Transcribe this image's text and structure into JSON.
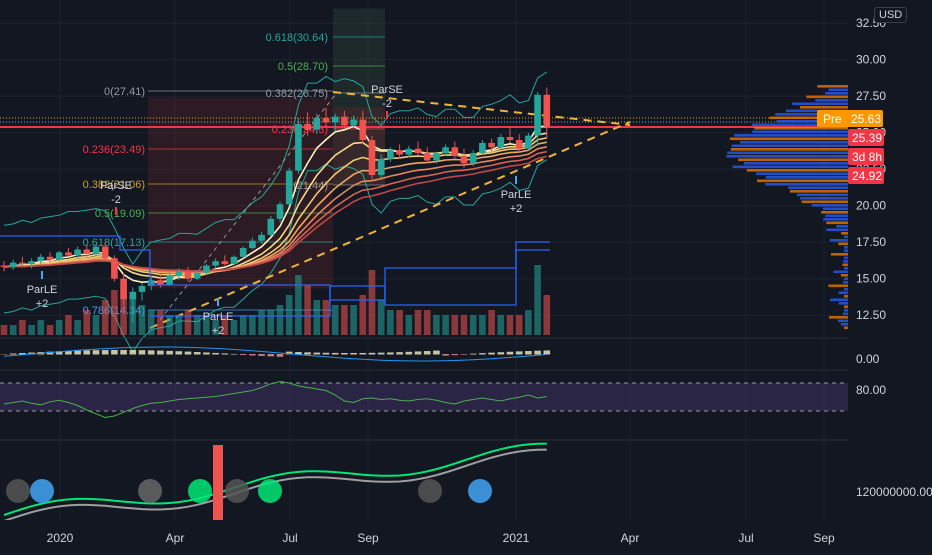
{
  "currency": "USD",
  "colors": {
    "background": "#131722",
    "grid": "#1e2230",
    "axis_text": "#d1d4dc",
    "up": "#26a69a",
    "down": "#ef5350",
    "fib": "#9598a1",
    "trend": "#f0b43c",
    "volume_profile_blue": "#2962ff",
    "volume_profile_orange": "#f57c00",
    "red_line": "#f23645",
    "ema_warm": "#f5c96b",
    "pre_label": "#ff9800"
  },
  "price_labels": [
    {
      "text": "Pre",
      "value": "25.63",
      "color": "#ff9800"
    },
    {
      "text": "",
      "value": "25.39",
      "color": "#f23645"
    },
    {
      "text": "",
      "value": "3d 8h",
      "color": "#f23645"
    },
    {
      "text": "",
      "value": "24.92",
      "color": "#f23645"
    }
  ],
  "x_axis_labels": [
    "2020",
    "Apr",
    "Jul",
    "Sep",
    "2021",
    "Apr",
    "Jul",
    "Sep"
  ],
  "fib_labels": [
    {
      "text": "0(27.41)",
      "color": "#9598a1"
    },
    {
      "text": "0.236(23.49)",
      "color": "#f23645"
    },
    {
      "text": "0.382(21.06)",
      "color": "#c9a227"
    },
    {
      "text": "0.5(19.09)",
      "color": "#4caf50"
    },
    {
      "text": "0.618(17.13)",
      "color": "#26a69a"
    },
    {
      "text": "0.786(14.34)",
      "color": "#42a5f5"
    },
    {
      "text": "0.382(26.75)",
      "color": "#9598a1"
    },
    {
      "text": "0.236(24.3)",
      "color": "#f23645"
    },
    {
      "text": "0(21.44)",
      "color": "#9598a1"
    },
    {
      "text": "0.5(28.70)",
      "color": "#4caf50"
    },
    {
      "text": "0.618(30.64)",
      "color": "#26a69a"
    }
  ],
  "signal_labels": [
    {
      "text": "ParLE",
      "sub": "+2",
      "direction": "up"
    },
    {
      "text": "ParSE",
      "sub": "-2",
      "direction": "down"
    },
    {
      "text": "ParLE",
      "sub": "+2",
      "direction": "up"
    },
    {
      "text": "ParSE",
      "sub": "-2",
      "direction": "down"
    },
    {
      "text": "ParLE",
      "sub": "+2",
      "direction": "up"
    }
  ],
  "chart_data": [
    {
      "type": "candlestick",
      "pane": "price",
      "y_axis_ticks": [
        "12.50",
        "15.00",
        "17.50",
        "20.00",
        "22.50",
        "25.00",
        "27.50",
        "30.00",
        "32.50"
      ],
      "ylim": [
        11,
        33
      ],
      "x_axis_ticks": [
        "2020",
        "Apr",
        "Jul",
        "Sep",
        "2021",
        "Apr",
        "Jul",
        "Sep"
      ],
      "series": [
        {
          "name": "",
          "ohlc": [
            [
              15.9,
              16.2,
              15.5,
              15.8
            ],
            [
              15.8,
              16.3,
              15.6,
              16.1
            ],
            [
              16.1,
              16.5,
              15.9,
              16.0
            ],
            [
              16.0,
              16.4,
              15.7,
              16.2
            ],
            [
              16.2,
              16.7,
              16.0,
              16.5
            ],
            [
              16.5,
              16.8,
              16.1,
              16.3
            ],
            [
              16.3,
              16.9,
              16.2,
              16.8
            ],
            [
              16.8,
              17.1,
              16.5,
              16.6
            ],
            [
              16.6,
              17.2,
              16.4,
              17.0
            ],
            [
              17.0,
              17.3,
              16.5,
              16.7
            ],
            [
              16.7,
              17.4,
              16.6,
              17.2
            ],
            [
              17.2,
              17.5,
              16.2,
              16.4
            ],
            [
              16.4,
              16.6,
              14.8,
              15.0
            ],
            [
              15.0,
              15.4,
              13.2,
              13.6
            ],
            [
              13.6,
              14.4,
              12.0,
              14.1
            ],
            [
              14.1,
              14.7,
              13.5,
              14.5
            ],
            [
              14.5,
              15.2,
              14.2,
              14.9
            ],
            [
              14.9,
              15.3,
              14.4,
              14.6
            ],
            [
              14.6,
              15.4,
              14.5,
              15.2
            ],
            [
              15.2,
              15.7,
              14.9,
              15.5
            ],
            [
              15.5,
              15.8,
              14.8,
              15.0
            ],
            [
              15.0,
              15.6,
              14.9,
              15.4
            ],
            [
              15.4,
              16.0,
              15.3,
              15.9
            ],
            [
              15.9,
              16.4,
              15.7,
              16.2
            ],
            [
              16.2,
              16.6,
              15.9,
              16.0
            ],
            [
              16.0,
              16.6,
              15.9,
              16.5
            ],
            [
              16.5,
              17.2,
              16.4,
              17.1
            ],
            [
              17.1,
              17.8,
              17.0,
              17.6
            ],
            [
              17.6,
              18.2,
              17.4,
              18.0
            ],
            [
              18.0,
              19.3,
              17.9,
              19.1
            ],
            [
              19.1,
              20.3,
              18.9,
              20.1
            ],
            [
              20.1,
              22.6,
              20.0,
              22.4
            ],
            [
              22.4,
              26.0,
              22.2,
              25.6
            ],
            [
              25.6,
              26.4,
              24.8,
              25.2
            ],
            [
              25.2,
              26.3,
              24.9,
              26.0
            ],
            [
              26.0,
              26.7,
              25.4,
              25.7
            ],
            [
              25.7,
              26.3,
              25.1,
              26.1
            ],
            [
              26.1,
              26.5,
              25.3,
              25.5
            ],
            [
              25.5,
              26.2,
              25.3,
              25.9
            ],
            [
              25.9,
              26.5,
              24.2,
              24.5
            ],
            [
              24.5,
              24.8,
              21.8,
              22.1
            ],
            [
              22.1,
              23.5,
              21.9,
              23.2
            ],
            [
              23.2,
              24.0,
              23.0,
              23.8
            ],
            [
              23.8,
              24.2,
              23.2,
              23.5
            ],
            [
              23.5,
              24.1,
              23.3,
              23.9
            ],
            [
              23.9,
              24.4,
              23.4,
              23.6
            ],
            [
              23.6,
              24.0,
              22.9,
              23.1
            ],
            [
              23.1,
              23.7,
              22.9,
              23.6
            ],
            [
              23.6,
              24.2,
              23.4,
              24.0
            ],
            [
              24.0,
              24.4,
              23.2,
              23.4
            ],
            [
              23.4,
              23.9,
              22.6,
              22.9
            ],
            [
              22.9,
              23.8,
              22.7,
              23.6
            ],
            [
              23.6,
              24.5,
              23.5,
              24.3
            ],
            [
              24.3,
              24.6,
              23.7,
              24.0
            ],
            [
              24.0,
              24.9,
              23.9,
              24.7
            ],
            [
              24.7,
              25.3,
              24.3,
              24.5
            ],
            [
              24.5,
              24.9,
              23.6,
              23.9
            ],
            [
              23.9,
              25.0,
              23.8,
              24.8
            ],
            [
              24.8,
              27.8,
              24.1,
              27.6
            ],
            [
              27.6,
              28.1,
              24.6,
              25.4
            ]
          ]
        },
        {
          "name": "",
          "kind": "volume",
          "values": [
            2,
            2,
            3,
            2,
            3,
            2,
            3,
            4,
            3,
            5,
            4,
            7,
            9,
            10,
            8,
            6,
            5,
            5,
            4,
            4,
            5,
            4,
            4,
            3,
            4,
            3,
            4,
            4,
            5,
            5,
            6,
            8,
            12,
            10,
            7,
            7,
            6,
            6,
            6,
            8,
            13,
            7,
            5,
            5,
            4,
            5,
            5,
            4,
            4,
            4,
            4,
            4,
            4,
            5,
            4,
            4,
            4,
            5,
            14,
            8
          ]
        }
      ]
    },
    {
      "type": "line",
      "pane": "macd",
      "y_axis_ticks": [
        "0.00"
      ],
      "series": [
        {
          "name": "",
          "values": []
        }
      ]
    },
    {
      "type": "line",
      "pane": "rsi",
      "y_axis_ticks": [
        "80.00"
      ],
      "series": [
        {
          "name": "",
          "values": [
            48,
            50,
            52,
            49,
            47,
            51,
            53,
            50,
            46,
            40,
            35,
            30,
            32,
            37,
            42,
            46,
            49,
            50,
            52,
            54,
            55,
            56,
            57,
            58,
            60,
            62,
            64,
            66,
            70,
            75,
            78,
            76,
            72,
            70,
            68,
            66,
            60,
            52,
            50,
            55,
            56,
            54,
            55,
            53,
            52,
            54,
            55,
            53,
            50,
            48,
            52,
            54,
            56,
            54,
            52,
            55,
            57,
            60,
            56,
            58
          ]
        }
      ]
    },
    {
      "type": "line",
      "pane": "obv",
      "y_axis_ticks": [
        "120000000.00"
      ],
      "series": [
        {
          "name": "",
          "values": []
        }
      ]
    }
  ]
}
